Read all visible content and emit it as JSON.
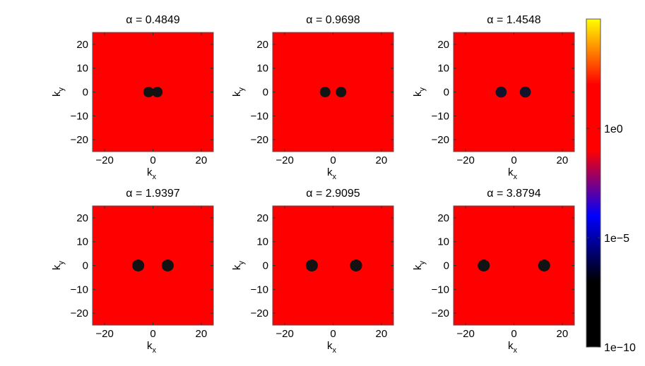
{
  "chart_data": {
    "type": "heatmap",
    "layout": {
      "rows": 2,
      "cols": 3
    },
    "panels": [
      {
        "title": "α = 0.4849",
        "xlabel": "k",
        "xlabel_sub": "x",
        "ylabel": "k",
        "ylabel_sub": "y",
        "xlim": [
          -25,
          25
        ],
        "ylim": [
          -25,
          25
        ],
        "xticks": [
          "−20",
          "0",
          "20"
        ],
        "yticks": [
          "20",
          "10",
          "0",
          "−10",
          "−20"
        ],
        "background_value": "1e0",
        "spots": [
          {
            "x": -1.8,
            "y": 0,
            "r": 2.2,
            "color": "#121212"
          },
          {
            "x": 1.8,
            "y": 0,
            "r": 2.2,
            "color": "#121212"
          }
        ]
      },
      {
        "title": "α = 0.9698",
        "xlabel": "k",
        "xlabel_sub": "x",
        "ylabel": "k",
        "ylabel_sub": "y",
        "xlim": [
          -25,
          25
        ],
        "ylim": [
          -25,
          25
        ],
        "xticks": [
          "−20",
          "0",
          "20"
        ],
        "yticks": [
          "20",
          "10",
          "0",
          "−10",
          "−20"
        ],
        "background_value": "1e0",
        "spots": [
          {
            "x": -3.3,
            "y": 0,
            "r": 2.2,
            "color": "#141414"
          },
          {
            "x": 3.3,
            "y": 0,
            "r": 2.2,
            "color": "#141414"
          }
        ]
      },
      {
        "title": "α = 1.4548",
        "xlabel": "k",
        "xlabel_sub": "x",
        "ylabel": "k",
        "ylabel_sub": "y",
        "xlim": [
          -25,
          25
        ],
        "ylim": [
          -25,
          25
        ],
        "xticks": [
          "−20",
          "0",
          "20"
        ],
        "yticks": [
          "20",
          "10",
          "0",
          "−10",
          "−20"
        ],
        "background_value": "1e0",
        "spots": [
          {
            "x": -5.3,
            "y": 0,
            "r": 2.3,
            "color": "#10142a"
          },
          {
            "x": 4.7,
            "y": 0,
            "r": 2.3,
            "color": "#10142a"
          }
        ]
      },
      {
        "title": "α = 1.9397",
        "xlabel": "k",
        "xlabel_sub": "x",
        "ylabel": "k",
        "ylabel_sub": "y",
        "xlim": [
          -25,
          25
        ],
        "ylim": [
          -25,
          25
        ],
        "xticks": [
          "−20",
          "0",
          "20"
        ],
        "yticks": [
          "20",
          "10",
          "0",
          "−10",
          "−20"
        ],
        "background_value": "1e0",
        "spots": [
          {
            "x": -6.1,
            "y": 0,
            "r": 2.5,
            "color": "#121212"
          },
          {
            "x": 6.1,
            "y": 0,
            "r": 2.5,
            "color": "#121212"
          }
        ]
      },
      {
        "title": "α = 2.9095",
        "xlabel": "k",
        "xlabel_sub": "x",
        "ylabel": "k",
        "ylabel_sub": "y",
        "xlim": [
          -25,
          25
        ],
        "ylim": [
          -25,
          25
        ],
        "xticks": [
          "−20",
          "0",
          "20"
        ],
        "yticks": [
          "20",
          "10",
          "0",
          "−10",
          "−20"
        ],
        "background_value": "1e0",
        "spots": [
          {
            "x": -8.8,
            "y": 0,
            "r": 2.5,
            "color": "#121212"
          },
          {
            "x": 9.5,
            "y": 0,
            "r": 2.5,
            "color": "#121212"
          }
        ]
      },
      {
        "title": "α = 3.8794",
        "xlabel": "k",
        "xlabel_sub": "x",
        "ylabel": "k",
        "ylabel_sub": "y",
        "xlim": [
          -25,
          25
        ],
        "ylim": [
          -25,
          25
        ],
        "xticks": [
          "−20",
          "0",
          "20"
        ],
        "yticks": [
          "20",
          "10",
          "0",
          "−10",
          "−20"
        ],
        "background_value": "1e0",
        "spots": [
          {
            "x": -12.5,
            "y": 0,
            "r": 2.5,
            "color": "#121212"
          },
          {
            "x": 12.5,
            "y": 0,
            "r": 2.5,
            "color": "#121212"
          }
        ]
      }
    ],
    "colorbar": {
      "scale": "log",
      "range": [
        "1e-10",
        "1e5"
      ],
      "ticks": [
        "1e0",
        "1e−5",
        "1e−10"
      ],
      "tick_values": [
        0,
        -5,
        -10
      ],
      "colormap": [
        "#000000",
        "#0000ff",
        "#ff0000",
        "#ffff00"
      ],
      "placement": "right"
    },
    "background_color": "#ff0000"
  }
}
